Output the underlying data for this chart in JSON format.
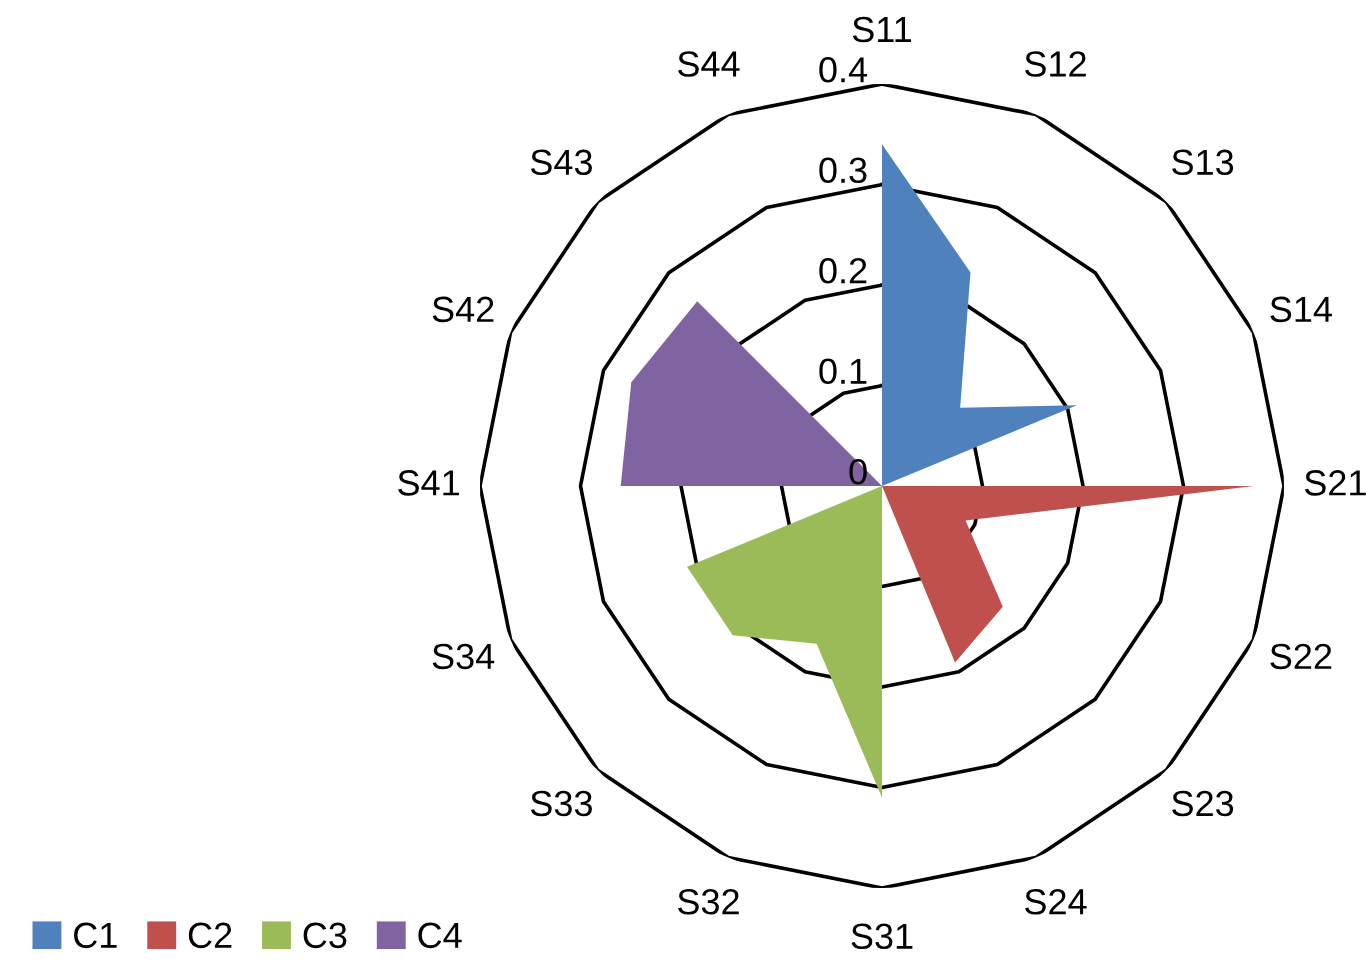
{
  "chart_data": {
    "type": "radar",
    "categories": [
      "S11",
      "S12",
      "S13",
      "S14",
      "S21",
      "S22",
      "S23",
      "S24",
      "S31",
      "S32",
      "S33",
      "S34",
      "S41",
      "S42",
      "S43",
      "S44"
    ],
    "series": [
      {
        "name": "C1",
        "color": "#4f81bd",
        "values": [
          0.34,
          0.23,
          0.11,
          0.21,
          0,
          0,
          0,
          0,
          0,
          0,
          0,
          0,
          0,
          0,
          0,
          0
        ]
      },
      {
        "name": "C2",
        "color": "#c0504d",
        "values": [
          0,
          0,
          0,
          0,
          0.37,
          0.09,
          0.17,
          0.19,
          0,
          0,
          0,
          0,
          0,
          0,
          0,
          0
        ]
      },
      {
        "name": "C3",
        "color": "#9bbb59",
        "values": [
          0,
          0,
          0,
          0,
          0,
          0,
          0,
          0,
          0.31,
          0.17,
          0.21,
          0.21,
          0,
          0,
          0,
          0
        ]
      },
      {
        "name": "C4",
        "color": "#8064a2",
        "values": [
          0,
          0,
          0,
          0,
          0,
          0,
          0,
          0,
          0,
          0,
          0,
          0,
          0.26,
          0.27,
          0.26,
          0
        ]
      }
    ],
    "ylim": [
      0,
      0.4
    ],
    "yticks": [
      0,
      0.1,
      0.2,
      0.3,
      0.4
    ],
    "grid": true,
    "legend": "bottom left"
  }
}
